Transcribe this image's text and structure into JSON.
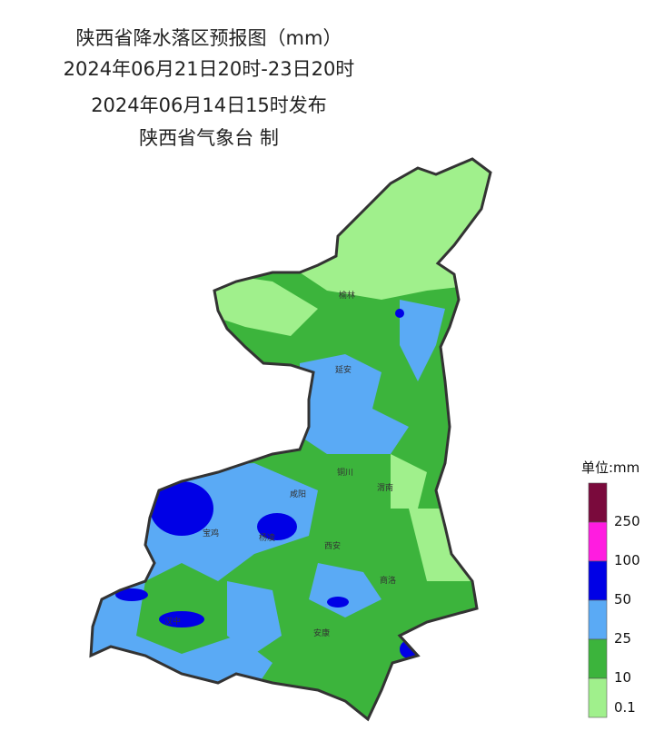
{
  "header": {
    "title": "陕西省降水落区预报图（mm）",
    "period": "2024年06月21日20时-23日20时",
    "issued": "2024年06月14日15时发布",
    "issuer": "陕西省气象台 制"
  },
  "cities": [
    "榆林",
    "延安",
    "铜川",
    "渭南",
    "咸阳",
    "宝鸡",
    "杨凌",
    "西安",
    "商洛",
    "汉中",
    "安康"
  ],
  "legend": {
    "title": "单位:mm",
    "colors": [
      "#7a0a3c",
      "#ff1ce0",
      "#0000e6",
      "#5aaaf5",
      "#3cb43c",
      "#a0f08c"
    ],
    "labels": [
      250,
      100,
      50,
      25,
      10,
      0.1
    ]
  }
}
